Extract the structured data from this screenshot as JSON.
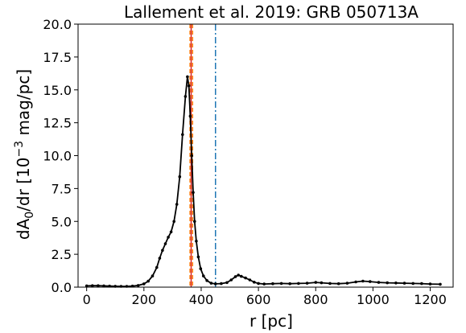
{
  "chart_data": {
    "type": "line",
    "title": "Lallement et al. 2019: GRB 050713A",
    "xlabel": "r [pc]",
    "ylabel_parts": {
      "pre": "dA",
      "sub": "0",
      "mid": "/dr [10",
      "sup": "−3",
      "post": " mag/pc]"
    },
    "xlim": [
      -30,
      1280
    ],
    "ylim": [
      0,
      20
    ],
    "xticks": [
      0,
      200,
      400,
      600,
      800,
      1000,
      1200
    ],
    "yticks": [
      0.0,
      2.5,
      5.0,
      7.5,
      10.0,
      12.5,
      15.0,
      17.5,
      20.0
    ],
    "xtick_labels": [
      "0",
      "200",
      "400",
      "600",
      "800",
      "1000",
      "1200"
    ],
    "ytick_labels": [
      "0.0",
      "2.5",
      "5.0",
      "7.5",
      "10.0",
      "12.5",
      "15.0",
      "17.5",
      "20.0"
    ],
    "grid": false,
    "series": [
      {
        "color": "#000000",
        "marker": "dot",
        "points": [
          [
            0,
            0.1
          ],
          [
            20,
            0.11
          ],
          [
            40,
            0.11
          ],
          [
            60,
            0.1
          ],
          [
            80,
            0.08
          ],
          [
            100,
            0.07
          ],
          [
            120,
            0.06
          ],
          [
            140,
            0.06
          ],
          [
            160,
            0.08
          ],
          [
            180,
            0.13
          ],
          [
            200,
            0.25
          ],
          [
            215,
            0.45
          ],
          [
            230,
            0.85
          ],
          [
            245,
            1.5
          ],
          [
            255,
            2.2
          ],
          [
            265,
            2.8
          ],
          [
            275,
            3.3
          ],
          [
            285,
            3.8
          ],
          [
            295,
            4.2
          ],
          [
            305,
            5.0
          ],
          [
            315,
            6.3
          ],
          [
            325,
            8.4
          ],
          [
            335,
            11.6
          ],
          [
            345,
            14.5
          ],
          [
            352,
            16.0
          ],
          [
            357,
            15.3
          ],
          [
            362,
            13.0
          ],
          [
            367,
            10.0
          ],
          [
            372,
            7.2
          ],
          [
            377,
            5.0
          ],
          [
            383,
            3.5
          ],
          [
            390,
            2.3
          ],
          [
            398,
            1.4
          ],
          [
            408,
            0.85
          ],
          [
            420,
            0.5
          ],
          [
            435,
            0.3
          ],
          [
            450,
            0.25
          ],
          [
            470,
            0.27
          ],
          [
            490,
            0.35
          ],
          [
            505,
            0.55
          ],
          [
            520,
            0.8
          ],
          [
            530,
            0.92
          ],
          [
            540,
            0.82
          ],
          [
            555,
            0.7
          ],
          [
            570,
            0.55
          ],
          [
            585,
            0.38
          ],
          [
            600,
            0.28
          ],
          [
            620,
            0.24
          ],
          [
            650,
            0.26
          ],
          [
            680,
            0.28
          ],
          [
            710,
            0.26
          ],
          [
            740,
            0.28
          ],
          [
            770,
            0.3
          ],
          [
            800,
            0.36
          ],
          [
            820,
            0.33
          ],
          [
            850,
            0.28
          ],
          [
            880,
            0.26
          ],
          [
            910,
            0.3
          ],
          [
            940,
            0.4
          ],
          [
            965,
            0.46
          ],
          [
            990,
            0.42
          ],
          [
            1020,
            0.36
          ],
          [
            1050,
            0.33
          ],
          [
            1080,
            0.32
          ],
          [
            1110,
            0.3
          ],
          [
            1140,
            0.28
          ],
          [
            1170,
            0.27
          ],
          [
            1200,
            0.24
          ],
          [
            1235,
            0.22
          ]
        ]
      }
    ],
    "vlines": [
      {
        "x": 361,
        "color": "#ff7f0e",
        "style": "dashed"
      },
      {
        "x": 365,
        "color": "#d62728",
        "style": "solid"
      },
      {
        "x": 370,
        "color": "#ff7f0e",
        "style": "dashed"
      },
      {
        "x": 450,
        "color": "#1f77b4",
        "style": "dashdot"
      }
    ]
  }
}
